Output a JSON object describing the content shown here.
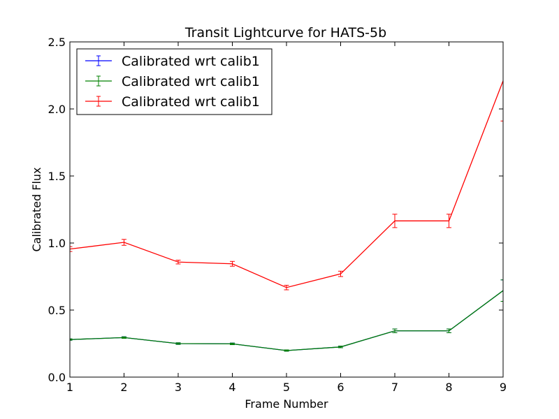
{
  "chart_data": {
    "type": "line",
    "title": "Transit Lightcurve for HATS-5b",
    "xlabel": "Frame Number",
    "ylabel": "Calibrated Flux",
    "xlim": [
      1,
      9
    ],
    "ylim": [
      0.0,
      2.5
    ],
    "x_ticks": [
      "1",
      "2",
      "3",
      "4",
      "5",
      "6",
      "7",
      "8",
      "9"
    ],
    "y_ticks": [
      "0.0",
      "0.5",
      "1.0",
      "1.5",
      "2.0",
      "2.5"
    ],
    "grid": false,
    "legend_position": "top-left",
    "x": [
      1,
      2,
      3,
      4,
      5,
      6,
      7,
      8,
      9
    ],
    "series": [
      {
        "name": "Calibrated wrt calib1",
        "color": "#0000ff",
        "values": [
          0.28,
          0.295,
          0.25,
          0.248,
          0.198,
          0.225,
          0.345,
          0.345,
          0.645
        ],
        "errors": [
          0.005,
          0.006,
          0.006,
          0.006,
          0.005,
          0.006,
          0.014,
          0.014,
          0.08
        ]
      },
      {
        "name": "Calibrated wrt calib1",
        "color": "#008000",
        "values": [
          0.28,
          0.295,
          0.25,
          0.248,
          0.198,
          0.225,
          0.345,
          0.345,
          0.645
        ],
        "errors": [
          0.005,
          0.006,
          0.006,
          0.006,
          0.005,
          0.006,
          0.014,
          0.014,
          0.08
        ]
      },
      {
        "name": "Calibrated wrt calib1",
        "color": "#ff0000",
        "values": [
          0.955,
          1.005,
          0.858,
          0.845,
          0.668,
          0.77,
          1.165,
          1.165,
          2.21
        ],
        "errors": [
          0.018,
          0.022,
          0.014,
          0.018,
          0.017,
          0.02,
          0.05,
          0.05,
          0.3
        ]
      }
    ]
  }
}
